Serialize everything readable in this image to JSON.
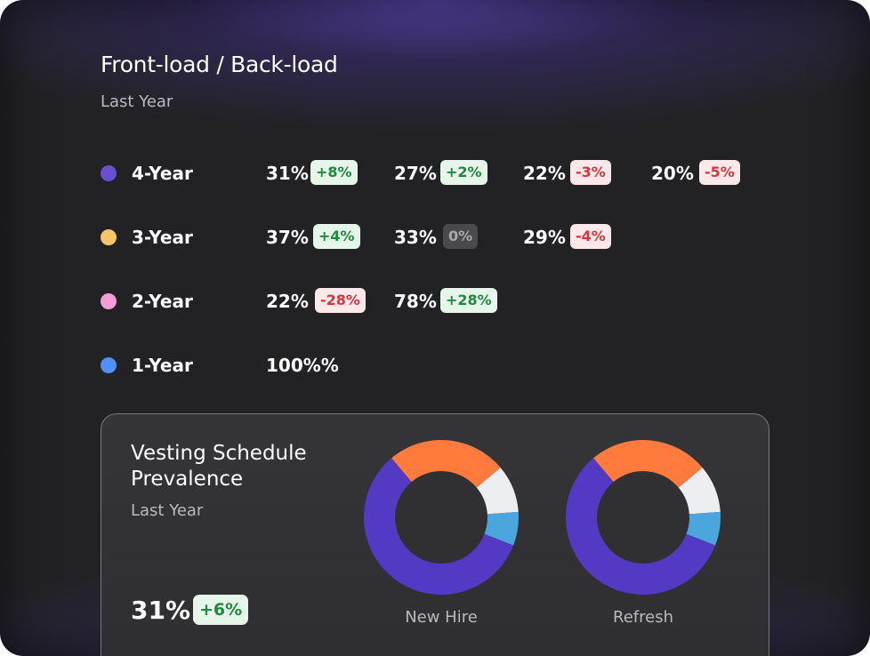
{
  "header": {
    "title": "Front-load / Back-load",
    "subtitle": "Last Year"
  },
  "rows": [
    {
      "label": "4-Year",
      "color": "#6a4fd3",
      "cells": [
        {
          "value": "31%",
          "change": "+8%",
          "trend": "pos"
        },
        {
          "value": "27%",
          "change": "+2%",
          "trend": "pos"
        },
        {
          "value": "22%",
          "change": "-3%",
          "trend": "neg"
        },
        {
          "value": "20%",
          "change": "-5%",
          "trend": "neg"
        }
      ]
    },
    {
      "label": "3-Year",
      "color": "#f6c567",
      "cells": [
        {
          "value": "37%",
          "change": "+4%",
          "trend": "pos"
        },
        {
          "value": "33%",
          "change": "0%",
          "trend": "neu"
        },
        {
          "value": "29%",
          "change": "-4%",
          "trend": "neg"
        }
      ]
    },
    {
      "label": "2-Year",
      "color": "#f59bd8",
      "cells": [
        {
          "value": "22%",
          "change": "-28%",
          "trend": "neg"
        },
        {
          "value": "78%",
          "change": "+28%",
          "trend": "pos"
        }
      ]
    },
    {
      "label": "1-Year",
      "color": "#4f8ff7",
      "cells": [
        {
          "value": "100%%",
          "change": "",
          "trend": ""
        }
      ]
    }
  ],
  "panel": {
    "title": "Vesting Schedule Prevalence",
    "subtitle": "Last Year",
    "value": "31%",
    "change": "+6%"
  },
  "chart_data": [
    {
      "type": "pie",
      "name": "New Hire",
      "segments": [
        {
          "share": 0.25,
          "color": "#ff7a3d"
        },
        {
          "share": 0.1,
          "color": "#eceef2"
        },
        {
          "share": 0.07,
          "color": "#4aa6dc"
        },
        {
          "share": 0.58,
          "color": "#5339c4"
        }
      ]
    },
    {
      "type": "pie",
      "name": "Refresh",
      "segments": [
        {
          "share": 0.25,
          "color": "#ff7a3d"
        },
        {
          "share": 0.1,
          "color": "#eceef2"
        },
        {
          "share": 0.07,
          "color": "#4aa6dc"
        },
        {
          "share": 0.58,
          "color": "#5339c4"
        }
      ]
    }
  ],
  "donut_labels": [
    "New Hire",
    "Refresh"
  ]
}
